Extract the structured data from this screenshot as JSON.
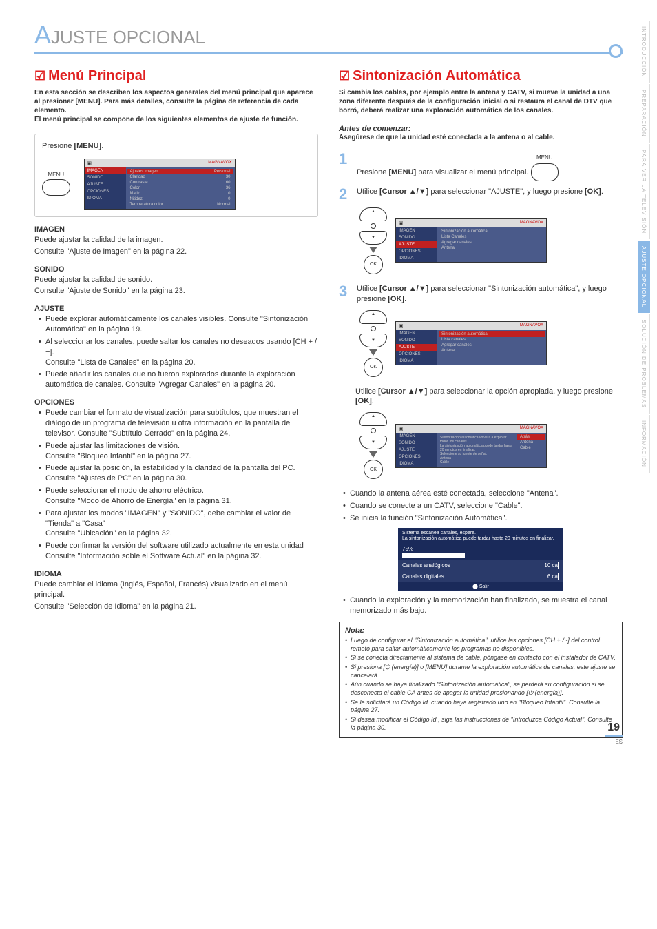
{
  "page": {
    "number": "19",
    "region": "ES"
  },
  "title": {
    "letter": "A",
    "rest": "JUSTE    OPCIONAL"
  },
  "side_tabs": [
    "INTRODUCCIÓN",
    "PREPARACIÓN",
    "PARA VER LA TELEVISIÓN",
    "AJUSTE  OPCIONAL",
    "SOLUCIÓN DE PROBLEMAS",
    "INFORMACIÓN"
  ],
  "side_active_index": 3,
  "left": {
    "heading": "Menú Principal",
    "intro": "En esta sección se describen los aspectos generales del menú principal que aparece al presionar [MENU]. Para más detalles, consulte la página de referencia de cada elemento.\nEl menú principal se compone de los siguientes elementos de ajuste de función.",
    "step0": "Presione [MENU].",
    "menu_label": "MENU",
    "tv_brand": "MAGNAVOX",
    "tv_menu": [
      "IMAGEN",
      "SONIDO",
      "AJUSTE",
      "OPCIONES",
      "IDIOMA"
    ],
    "tv_content": [
      {
        "l": "Ajustes imagen",
        "r": "Personal"
      },
      {
        "l": "Claridad",
        "r": "30"
      },
      {
        "l": "Contraste",
        "r": "60"
      },
      {
        "l": "Color",
        "r": "36"
      },
      {
        "l": "Matiz",
        "r": "0"
      },
      {
        "l": "Nitidez",
        "r": "0"
      },
      {
        "l": "Temperatura color",
        "r": "Normal"
      }
    ],
    "sections": [
      {
        "h": "IMAGEN",
        "lines": [
          "Puede ajustar la calidad de la imagen.",
          "Consulte \"Ajuste de Imagen\" en la página 22."
        ]
      },
      {
        "h": "SONIDO",
        "lines": [
          "Puede ajustar la calidad de sonido.",
          "Consulte \"Ajuste de Sonido\" en la página 23."
        ]
      },
      {
        "h": "AJUSTE",
        "bullets": [
          "Puede explorar automáticamente los canales visibles. Consulte \"Sintonización Automática\" en la página 19.",
          "Al seleccionar los canales, puede saltar los canales no deseados usando [CH + / −].\nConsulte \"Lista de Canales\" en la página 20.",
          "Puede añadir los canales que no fueron explorados durante la exploración automática de canales. Consulte \"Agregar Canales\" en la página 20."
        ]
      },
      {
        "h": "OPCIONES",
        "bullets": [
          "Puede cambiar el formato de visualización para subtítulos, que muestran el diálogo de un programa de televisión u otra información en la pantalla del televisor. Consulte \"Subtítulo Cerrado\" en la página 24.",
          "Puede ajustar las limitaciones de visión.\nConsulte \"Bloqueo Infantil\" en la página 27.",
          "Puede ajustar la posición, la estabilidad y la claridad de la pantalla del PC.\nConsulte \"Ajustes de PC\" en la página 30.",
          "Puede seleccionar el modo de ahorro eléctrico.\nConsulte \"Modo de Ahorro de Energía\" en la página 31.",
          "Para ajustar los modos \"IMAGEN\" y \"SONIDO\", debe cambiar el valor de \"Tienda\" a \"Casa\"\nConsulte \"Ubicación\" en la página 32.",
          "Puede confirmar la versión del software utilizado actualmente en esta unidad\nConsulte \"Información soble el Software Actual\" en la página 32."
        ]
      },
      {
        "h": "IDIOMA",
        "lines": [
          "Puede cambiar el idioma (Inglés, Español, Francés) visualizado en el menú principal.",
          "Consulte \"Selección de Idioma\" en la página 21."
        ]
      }
    ]
  },
  "right": {
    "heading": "Sintonización Automática",
    "intro": "Si cambia los cables, por ejemplo entre la antena y CATV, si mueve la unidad a una zona diferente después de la configuración inicial o si restaura el canal de DTV que borró, deberá realizar una exploración automática de los canales.",
    "before_label": "Antes de comenzar:",
    "before_text": "Asegúrese de que la unidad esté conectada a la antena o al cable.",
    "steps": [
      {
        "n": "1",
        "t": "Presione [MENU] para visualizar el menú principal."
      },
      {
        "n": "2",
        "t": "Utilice [Cursor ▲/▼] para seleccionar \"AJUSTE\", y luego presione [OK]."
      },
      {
        "n": "3",
        "t": "Utilice [Cursor ▲/▼] para seleccionar \"Sintonización automática\", y luego presione [OK]."
      }
    ],
    "tv2_menu": [
      "IMAGEN",
      "SONIDO",
      "AJUSTE",
      "OPCIONES",
      "IDIOMA"
    ],
    "tv2_rows": [
      "Sintonización automática",
      "Lista Canales",
      "Agregar canales",
      "Antena"
    ],
    "tv3_rows": [
      "Sintonización automática",
      "Lista canales",
      "Agregar canales",
      "Antena"
    ],
    "mid_text": "Utilice [Cursor ▲/▼] para seleccionar la opción apropiada, y luego presione [OK].",
    "tv4_side": [
      "Atrás",
      "Antena",
      "Cable"
    ],
    "tv4_desc": [
      "Sintonización automática volvera a explorar",
      "todos los canales.",
      "La sintonización automática puede tardar hasta",
      "20 minutos en finalizar.",
      "Seleccione su fuente de señal.",
      "Antena",
      "Cable"
    ],
    "post_bullets": [
      "Cuando la antena aérea esté conectada, seleccione \"Antena\".",
      "Cuando se conecte a un CATV, seleccione \"Cable\".",
      "Se inicia la función \"Sintonización Automática\"."
    ],
    "scan": {
      "hdr1": "Sistema escanea canales, espere.",
      "hdr2": "La sintonización automática puede tardar hasta 20 minutos en finalizar.",
      "pct": "75%",
      "rows": [
        {
          "l": "Canales analógicos",
          "r": "10 ca"
        },
        {
          "l": "Canales digitales",
          "r": "6 ca"
        }
      ],
      "footer": "Salir"
    },
    "final_bullet": "Cuando la exploración y la memorización han finalizado, se muestra el canal memorizado más bajo.",
    "nota_title": "Nota:",
    "nota": [
      "Luego de configurar el \"Sintonización automática\", utilice las opciones [CH + / -] del control remoto para saltar automáticamente los programas no disponibles.",
      "Si se conecta directamente al sistema de cable, póngase en contacto con el instalador de CATV.",
      "Si presiona [⏻ (energía)] o [MENU] durante la exploración automática de canales, este ajuste se cancelará.",
      "Aún cuando se haya finalizado \"Sintonización automática\", se perderá su configuración si se desconecta el cable CA antes de apagar la unidad presionando [⏻ (energía)].",
      "Se le solicitará un Código Id. cuando haya registrado uno en \"Bloqueo Infantil\". Consulte la página 27.",
      "Si desea modificar el Código Id., siga las instrucciones de \"Introduzca Código Actual\". Consulte la página 30."
    ],
    "ok_label": "OK",
    "menu_label_small": "MENU"
  }
}
